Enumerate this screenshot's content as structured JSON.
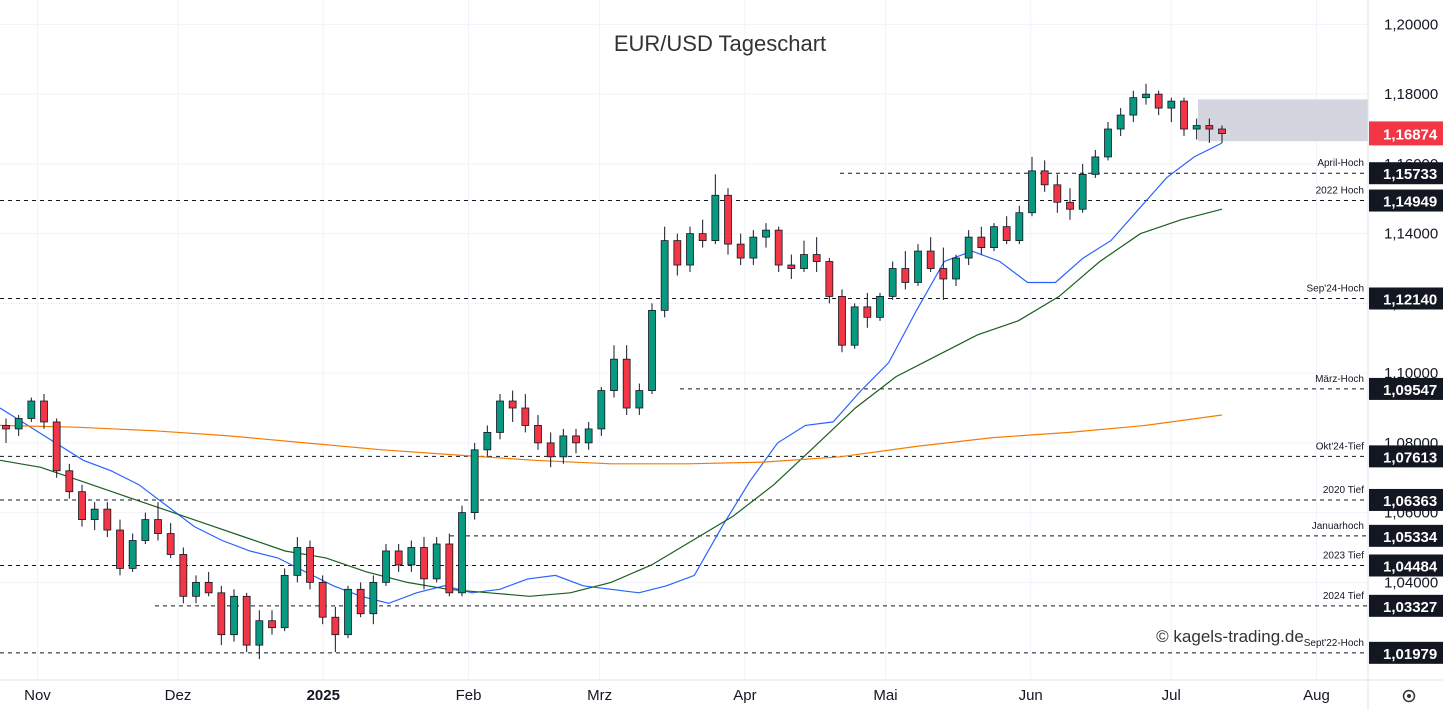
{
  "chart_data": {
    "type": "candlestick",
    "title": "EUR/USD Tageschart",
    "watermark": "© kagels-trading.de",
    "y_axis": {
      "ticks": [
        "1,20000",
        "1,18000",
        "1,16000",
        "1,14000",
        "1,12000",
        "1,10000",
        "1,08000",
        "1,06000",
        "1,04000"
      ],
      "tick_values": [
        1.2,
        1.18,
        1.16,
        1.14,
        1.12,
        1.1,
        1.08,
        1.06,
        1.04
      ],
      "range": [
        1.012,
        1.207
      ]
    },
    "x_axis": {
      "labels": [
        "Nov",
        "Dez",
        "2025",
        "Feb",
        "Mrz",
        "Apr",
        "Mai",
        "Jun",
        "Jul",
        "Aug"
      ],
      "bold_labels": [
        "2025"
      ],
      "label_dates": [
        "2024-11-01",
        "2024-12-01",
        "2025-01-01",
        "2025-02-01",
        "2025-03-01",
        "2025-04-01",
        "2025-05-01",
        "2025-06-01",
        "2025-07-01",
        "2025-08-01"
      ]
    },
    "current_price": {
      "label": "1,16874",
      "value": 1.16874,
      "color": "#f23645"
    },
    "levels": [
      {
        "name": "April-Hoch",
        "label": "1,15733",
        "value": 1.15733
      },
      {
        "name": "2022 Hoch",
        "label": "1,14949",
        "value": 1.14949
      },
      {
        "name": "Sep'24-Hoch",
        "label": "1,12140",
        "value": 1.1214
      },
      {
        "name": "März-Hoch",
        "label": "1,09547",
        "value": 1.09547
      },
      {
        "name": "Okt'24-Tief",
        "label": "1,07613",
        "value": 1.07613
      },
      {
        "name": "2020 Tief",
        "label": "1,06363",
        "value": 1.06363
      },
      {
        "name": "Januarhoch",
        "label": "1,05334",
        "value": 1.05334
      },
      {
        "name": "2023 Tief",
        "label": "1,04484",
        "value": 1.04484
      },
      {
        "name": "2024 Tief",
        "label": "1,03327",
        "value": 1.03327
      },
      {
        "name": "Sept'22-Hoch",
        "label": "1,01979",
        "value": 1.01979
      }
    ],
    "resistance_zone": {
      "from": 1.1665,
      "to": 1.1785,
      "color": "#d1d4dc"
    },
    "moving_averages": [
      {
        "color": "#2962ff",
        "values": [
          1.09,
          1.085,
          1.08,
          1.075,
          1.072,
          1.068,
          1.062,
          1.056,
          1.052,
          1.049,
          1.047,
          1.043,
          1.039,
          1.036,
          1.034,
          1.037,
          1.039,
          1.037,
          1.038,
          1.041,
          1.042,
          1.039,
          1.038,
          1.037,
          1.039,
          1.042,
          1.056,
          1.069,
          1.08,
          1.085,
          1.086,
          1.095,
          1.103,
          1.118,
          1.132,
          1.135,
          1.132,
          1.126,
          1.126,
          1.133,
          1.138,
          1.147,
          1.156,
          1.162,
          1.166
        ]
      },
      {
        "color": "#1b5e20",
        "values": [
          1.075,
          1.073,
          1.069,
          1.065,
          1.061,
          1.057,
          1.053,
          1.049,
          1.047,
          1.043,
          1.04,
          1.038,
          1.037,
          1.036,
          1.037,
          1.04,
          1.045,
          1.052,
          1.059,
          1.068,
          1.079,
          1.09,
          1.099,
          1.105,
          1.111,
          1.115,
          1.122,
          1.132,
          1.14,
          1.144,
          1.147
        ]
      },
      {
        "color": "#f57c00",
        "values": [
          1.085,
          1.0845,
          1.0835,
          1.082,
          1.08,
          1.078,
          1.0765,
          1.075,
          1.074,
          1.074,
          1.0745,
          1.076,
          1.079,
          1.0815,
          1.083,
          1.085,
          1.088
        ]
      }
    ],
    "candles": [
      {
        "o": 1.085,
        "h": 1.087,
        "l": 1.08,
        "c": 1.084
      },
      {
        "o": 1.084,
        "h": 1.088,
        "l": 1.082,
        "c": 1.087
      },
      {
        "o": 1.087,
        "h": 1.093,
        "l": 1.086,
        "c": 1.092
      },
      {
        "o": 1.092,
        "h": 1.094,
        "l": 1.084,
        "c": 1.086
      },
      {
        "o": 1.086,
        "h": 1.087,
        "l": 1.07,
        "c": 1.072
      },
      {
        "o": 1.072,
        "h": 1.074,
        "l": 1.064,
        "c": 1.066
      },
      {
        "o": 1.066,
        "h": 1.068,
        "l": 1.056,
        "c": 1.058
      },
      {
        "o": 1.058,
        "h": 1.063,
        "l": 1.055,
        "c": 1.061
      },
      {
        "o": 1.061,
        "h": 1.063,
        "l": 1.053,
        "c": 1.055
      },
      {
        "o": 1.055,
        "h": 1.058,
        "l": 1.042,
        "c": 1.044
      },
      {
        "o": 1.044,
        "h": 1.054,
        "l": 1.043,
        "c": 1.052
      },
      {
        "o": 1.052,
        "h": 1.06,
        "l": 1.051,
        "c": 1.058
      },
      {
        "o": 1.058,
        "h": 1.063,
        "l": 1.052,
        "c": 1.054
      },
      {
        "o": 1.054,
        "h": 1.057,
        "l": 1.047,
        "c": 1.048
      },
      {
        "o": 1.048,
        "h": 1.05,
        "l": 1.034,
        "c": 1.036
      },
      {
        "o": 1.036,
        "h": 1.042,
        "l": 1.034,
        "c": 1.04
      },
      {
        "o": 1.04,
        "h": 1.043,
        "l": 1.036,
        "c": 1.037
      },
      {
        "o": 1.037,
        "h": 1.039,
        "l": 1.022,
        "c": 1.025
      },
      {
        "o": 1.025,
        "h": 1.038,
        "l": 1.023,
        "c": 1.036
      },
      {
        "o": 1.036,
        "h": 1.037,
        "l": 1.02,
        "c": 1.022
      },
      {
        "o": 1.022,
        "h": 1.032,
        "l": 1.018,
        "c": 1.029
      },
      {
        "o": 1.029,
        "h": 1.032,
        "l": 1.025,
        "c": 1.027
      },
      {
        "o": 1.027,
        "h": 1.044,
        "l": 1.026,
        "c": 1.042
      },
      {
        "o": 1.042,
        "h": 1.053,
        "l": 1.04,
        "c": 1.05
      },
      {
        "o": 1.05,
        "h": 1.052,
        "l": 1.038,
        "c": 1.04
      },
      {
        "o": 1.04,
        "h": 1.042,
        "l": 1.028,
        "c": 1.03
      },
      {
        "o": 1.03,
        "h": 1.033,
        "l": 1.02,
        "c": 1.025
      },
      {
        "o": 1.025,
        "h": 1.039,
        "l": 1.024,
        "c": 1.038
      },
      {
        "o": 1.038,
        "h": 1.04,
        "l": 1.03,
        "c": 1.031
      },
      {
        "o": 1.031,
        "h": 1.042,
        "l": 1.028,
        "c": 1.04
      },
      {
        "o": 1.04,
        "h": 1.051,
        "l": 1.039,
        "c": 1.049
      },
      {
        "o": 1.049,
        "h": 1.051,
        "l": 1.043,
        "c": 1.045
      },
      {
        "o": 1.045,
        "h": 1.052,
        "l": 1.043,
        "c": 1.05
      },
      {
        "o": 1.05,
        "h": 1.053,
        "l": 1.038,
        "c": 1.041
      },
      {
        "o": 1.041,
        "h": 1.053,
        "l": 1.04,
        "c": 1.051
      },
      {
        "o": 1.051,
        "h": 1.054,
        "l": 1.036,
        "c": 1.037
      },
      {
        "o": 1.037,
        "h": 1.062,
        "l": 1.036,
        "c": 1.06
      },
      {
        "o": 1.06,
        "h": 1.08,
        "l": 1.058,
        "c": 1.078
      },
      {
        "o": 1.078,
        "h": 1.085,
        "l": 1.076,
        "c": 1.083
      },
      {
        "o": 1.083,
        "h": 1.094,
        "l": 1.081,
        "c": 1.092
      },
      {
        "o": 1.092,
        "h": 1.095,
        "l": 1.086,
        "c": 1.09
      },
      {
        "o": 1.09,
        "h": 1.094,
        "l": 1.083,
        "c": 1.085
      },
      {
        "o": 1.085,
        "h": 1.088,
        "l": 1.078,
        "c": 1.08
      },
      {
        "o": 1.08,
        "h": 1.083,
        "l": 1.073,
        "c": 1.076
      },
      {
        "o": 1.076,
        "h": 1.084,
        "l": 1.074,
        "c": 1.082
      },
      {
        "o": 1.082,
        "h": 1.084,
        "l": 1.077,
        "c": 1.08
      },
      {
        "o": 1.08,
        "h": 1.086,
        "l": 1.078,
        "c": 1.084
      },
      {
        "o": 1.084,
        "h": 1.096,
        "l": 1.082,
        "c": 1.095
      },
      {
        "o": 1.095,
        "h": 1.108,
        "l": 1.093,
        "c": 1.104
      },
      {
        "o": 1.104,
        "h": 1.108,
        "l": 1.088,
        "c": 1.09
      },
      {
        "o": 1.09,
        "h": 1.097,
        "l": 1.088,
        "c": 1.095
      },
      {
        "o": 1.095,
        "h": 1.12,
        "l": 1.094,
        "c": 1.118
      },
      {
        "o": 1.118,
        "h": 1.142,
        "l": 1.116,
        "c": 1.138
      },
      {
        "o": 1.138,
        "h": 1.14,
        "l": 1.128,
        "c": 1.131
      },
      {
        "o": 1.131,
        "h": 1.142,
        "l": 1.129,
        "c": 1.14
      },
      {
        "o": 1.14,
        "h": 1.144,
        "l": 1.136,
        "c": 1.138
      },
      {
        "o": 1.138,
        "h": 1.157,
        "l": 1.137,
        "c": 1.151
      },
      {
        "o": 1.151,
        "h": 1.153,
        "l": 1.134,
        "c": 1.137
      },
      {
        "o": 1.137,
        "h": 1.14,
        "l": 1.131,
        "c": 1.133
      },
      {
        "o": 1.133,
        "h": 1.141,
        "l": 1.131,
        "c": 1.139
      },
      {
        "o": 1.139,
        "h": 1.143,
        "l": 1.136,
        "c": 1.141
      },
      {
        "o": 1.141,
        "h": 1.142,
        "l": 1.129,
        "c": 1.131
      },
      {
        "o": 1.131,
        "h": 1.134,
        "l": 1.127,
        "c": 1.13
      },
      {
        "o": 1.13,
        "h": 1.138,
        "l": 1.129,
        "c": 1.134
      },
      {
        "o": 1.134,
        "h": 1.139,
        "l": 1.129,
        "c": 1.132
      },
      {
        "o": 1.132,
        "h": 1.133,
        "l": 1.12,
        "c": 1.122
      },
      {
        "o": 1.122,
        "h": 1.124,
        "l": 1.106,
        "c": 1.108
      },
      {
        "o": 1.108,
        "h": 1.12,
        "l": 1.107,
        "c": 1.119
      },
      {
        "o": 1.119,
        "h": 1.123,
        "l": 1.113,
        "c": 1.116
      },
      {
        "o": 1.116,
        "h": 1.123,
        "l": 1.115,
        "c": 1.122
      },
      {
        "o": 1.122,
        "h": 1.132,
        "l": 1.121,
        "c": 1.13
      },
      {
        "o": 1.13,
        "h": 1.135,
        "l": 1.124,
        "c": 1.126
      },
      {
        "o": 1.126,
        "h": 1.137,
        "l": 1.125,
        "c": 1.135
      },
      {
        "o": 1.135,
        "h": 1.139,
        "l": 1.129,
        "c": 1.13
      },
      {
        "o": 1.13,
        "h": 1.136,
        "l": 1.121,
        "c": 1.127
      },
      {
        "o": 1.127,
        "h": 1.134,
        "l": 1.125,
        "c": 1.133
      },
      {
        "o": 1.133,
        "h": 1.141,
        "l": 1.131,
        "c": 1.139
      },
      {
        "o": 1.139,
        "h": 1.142,
        "l": 1.134,
        "c": 1.136
      },
      {
        "o": 1.136,
        "h": 1.143,
        "l": 1.135,
        "c": 1.142
      },
      {
        "o": 1.142,
        "h": 1.145,
        "l": 1.137,
        "c": 1.138
      },
      {
        "o": 1.138,
        "h": 1.148,
        "l": 1.137,
        "c": 1.146
      },
      {
        "o": 1.146,
        "h": 1.162,
        "l": 1.145,
        "c": 1.158
      },
      {
        "o": 1.158,
        "h": 1.161,
        "l": 1.152,
        "c": 1.154
      },
      {
        "o": 1.154,
        "h": 1.157,
        "l": 1.146,
        "c": 1.149
      },
      {
        "o": 1.149,
        "h": 1.153,
        "l": 1.144,
        "c": 1.147
      },
      {
        "o": 1.147,
        "h": 1.16,
        "l": 1.146,
        "c": 1.157
      },
      {
        "o": 1.157,
        "h": 1.164,
        "l": 1.156,
        "c": 1.162
      },
      {
        "o": 1.162,
        "h": 1.172,
        "l": 1.161,
        "c": 1.17
      },
      {
        "o": 1.17,
        "h": 1.176,
        "l": 1.168,
        "c": 1.174
      },
      {
        "o": 1.174,
        "h": 1.181,
        "l": 1.172,
        "c": 1.179
      },
      {
        "o": 1.179,
        "h": 1.183,
        "l": 1.177,
        "c": 1.18
      },
      {
        "o": 1.18,
        "h": 1.181,
        "l": 1.174,
        "c": 1.176
      },
      {
        "o": 1.176,
        "h": 1.179,
        "l": 1.172,
        "c": 1.178
      },
      {
        "o": 1.178,
        "h": 1.179,
        "l": 1.168,
        "c": 1.17
      },
      {
        "o": 1.17,
        "h": 1.173,
        "l": 1.167,
        "c": 1.171
      },
      {
        "o": 1.171,
        "h": 1.173,
        "l": 1.166,
        "c": 1.17
      },
      {
        "o": 1.17,
        "h": 1.171,
        "l": 1.166,
        "c": 1.1687
      }
    ]
  }
}
